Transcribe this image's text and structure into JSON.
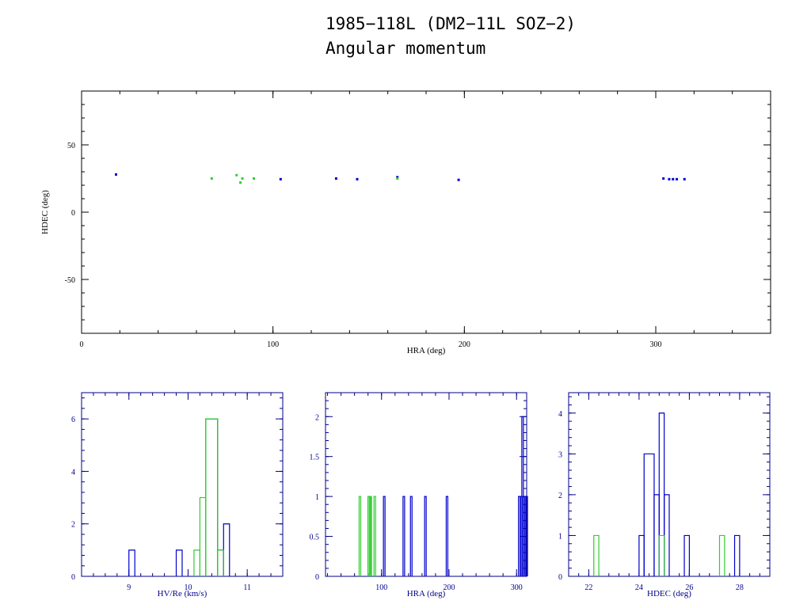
{
  "page": {
    "title_line1": "1985−118L (DM2−11L SOZ−2)",
    "title_line2": "Angular momentum"
  },
  "colors": {
    "axis_top": "#000000",
    "axis_bottom": "#00008b",
    "series_blue": "#0000cd",
    "series_green": "#32cd32"
  },
  "chart_data": [
    {
      "type": "scatter",
      "xlabel": "HRA (deg)",
      "ylabel": "HDEC (deg)",
      "xlim": [
        0,
        360
      ],
      "ylim": [
        -90,
        90
      ],
      "xticks": [
        0,
        100,
        200,
        300
      ],
      "yticks": [
        -50,
        0,
        50
      ],
      "series": [
        {
          "color": "series_blue",
          "points": [
            [
              18,
              28
            ],
            [
              104,
              24.5
            ],
            [
              133,
              25
            ],
            [
              144,
              24.5
            ],
            [
              165,
              26
            ],
            [
              197,
              24
            ],
            [
              304,
              25
            ],
            [
              307,
              24.5
            ],
            [
              309,
              24.5
            ],
            [
              311,
              24.5
            ],
            [
              315,
              24.5
            ]
          ]
        },
        {
          "color": "series_green",
          "points": [
            [
              68,
              25
            ],
            [
              81,
              27.5
            ],
            [
              83,
              22
            ],
            [
              84,
              25
            ],
            [
              90,
              25
            ],
            [
              165,
              25
            ]
          ]
        }
      ]
    },
    {
      "type": "bar",
      "subtype": "step-histogram",
      "xlabel": "HV/Re (km/s)",
      "xlim": [
        8.2,
        11.6
      ],
      "ylim": [
        0,
        7
      ],
      "xticks": [
        9,
        10,
        11
      ],
      "yticks": [
        0,
        2,
        4,
        6
      ],
      "series": [
        {
          "color": "series_blue",
          "bins": [
            [
              9.0,
              9.1,
              1
            ],
            [
              9.8,
              9.9,
              1
            ],
            [
              10.3,
              10.5,
              6
            ],
            [
              10.5,
              10.6,
              1
            ],
            [
              10.6,
              10.7,
              2
            ]
          ]
        },
        {
          "color": "series_green",
          "bins": [
            [
              10.1,
              10.2,
              1
            ],
            [
              10.2,
              10.3,
              3
            ],
            [
              10.3,
              10.5,
              6
            ],
            [
              10.5,
              10.6,
              1
            ]
          ]
        }
      ]
    },
    {
      "type": "bar",
      "subtype": "step-histogram",
      "xlabel": "HRA (deg)",
      "xlim": [
        17,
        315
      ],
      "ylim": [
        0,
        2.3
      ],
      "xticks": [
        100,
        200,
        300
      ],
      "yticks": [
        0,
        0.5,
        1,
        1.5,
        2
      ],
      "yticklabels": [
        "0",
        "0.5",
        "1",
        "1.5",
        "2"
      ],
      "series": [
        {
          "color": "series_blue",
          "bars": [
            [
              104,
              1
            ],
            [
              133,
              1
            ],
            [
              144,
              1
            ],
            [
              165,
              1
            ],
            [
              197,
              1
            ],
            [
              304,
              1
            ],
            [
              307,
              1
            ],
            [
              309,
              2
            ],
            [
              311,
              1
            ],
            [
              315,
              1
            ]
          ]
        },
        {
          "color": "series_green",
          "bars": [
            [
              68,
              1
            ],
            [
              81,
              1
            ],
            [
              83,
              1
            ],
            [
              84,
              1
            ],
            [
              90,
              1
            ]
          ]
        }
      ]
    },
    {
      "type": "bar",
      "subtype": "step-histogram",
      "xlabel": "HDEC (deg)",
      "xlim": [
        21.2,
        29.2
      ],
      "ylim": [
        0,
        4.5
      ],
      "xticks": [
        22,
        24,
        26,
        28
      ],
      "yticks": [
        0,
        1,
        2,
        3,
        4
      ],
      "series": [
        {
          "color": "series_blue",
          "bins": [
            [
              24.0,
              24.2,
              1
            ],
            [
              24.2,
              24.6,
              3
            ],
            [
              24.6,
              24.8,
              2
            ],
            [
              24.8,
              25.0,
              4
            ],
            [
              25.0,
              25.2,
              2
            ],
            [
              25.8,
              26.0,
              1
            ],
            [
              27.8,
              28.0,
              1
            ]
          ]
        },
        {
          "color": "series_green",
          "bins": [
            [
              22.2,
              22.4,
              1
            ],
            [
              24.8,
              25.0,
              1
            ],
            [
              27.2,
              27.4,
              1
            ]
          ]
        }
      ]
    }
  ]
}
